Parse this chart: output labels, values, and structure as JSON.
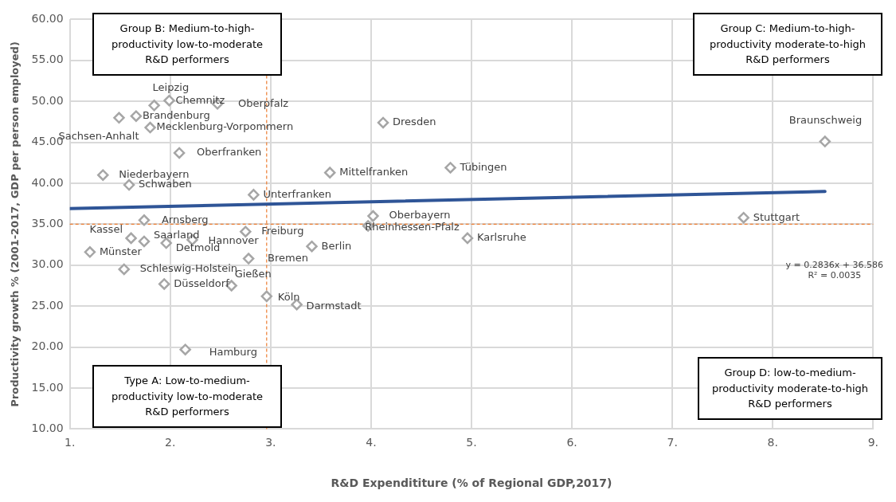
{
  "chart_data": {
    "type": "scatter",
    "xlabel": "R&D Expendititure (% of Regional GDP,2017)",
    "ylabel": "Productivity growth % (2001-2017, GDP per person employed)",
    "xlim": [
      1,
      9
    ],
    "xticks": [
      {
        "value": 1,
        "label": "1."
      },
      {
        "value": 2,
        "label": "2."
      },
      {
        "value": 3,
        "label": "3."
      },
      {
        "value": 4,
        "label": "4."
      },
      {
        "value": 5,
        "label": "5."
      },
      {
        "value": 6,
        "label": "6."
      },
      {
        "value": 7,
        "label": "7."
      },
      {
        "value": 8,
        "label": "8."
      },
      {
        "value": 9,
        "label": "9."
      }
    ],
    "ylim": [
      10,
      60
    ],
    "yticks": [
      {
        "value": 10,
        "label": "10.00"
      },
      {
        "value": 15,
        "label": "15.00"
      },
      {
        "value": 20,
        "label": "20.00"
      },
      {
        "value": 25,
        "label": "25.00"
      },
      {
        "value": 30,
        "label": "30.00"
      },
      {
        "value": 35,
        "label": "35.00"
      },
      {
        "value": 40,
        "label": "40.00"
      },
      {
        "value": 45,
        "label": "45.00"
      },
      {
        "value": 50,
        "label": "50.00"
      },
      {
        "value": 55,
        "label": "55.00"
      },
      {
        "value": 60,
        "label": "60.00"
      }
    ],
    "grid": true,
    "legend": false,
    "marker": "diamond",
    "series": [
      {
        "type": "scatter",
        "color": "#a6a6a6",
        "x": [
          1.84,
          1.99,
          2.47,
          1.66,
          1.8,
          1.49,
          2.09,
          1.33,
          1.59,
          2.83,
          4.12,
          3.59,
          4.79,
          8.52,
          7.71,
          4.96,
          4.02,
          3.97,
          3.41,
          1.74,
          1.61,
          1.2,
          1.74,
          2.22,
          1.96,
          2.75,
          2.78,
          1.54,
          1.94,
          2.61,
          2.96,
          3.26,
          2.15
        ],
        "values": [
          49.5,
          50.1,
          49.7,
          48.2,
          46.8,
          48.0,
          43.7,
          41.0,
          39.8,
          38.6,
          47.4,
          41.3,
          41.9,
          45.1,
          35.8,
          33.3,
          36.0,
          34.8,
          32.3,
          35.5,
          33.3,
          31.6,
          32.9,
          33.1,
          32.7,
          34.1,
          30.8,
          29.5,
          27.7,
          27.5,
          26.2,
          25.2,
          19.7
        ],
        "value_labels": [
          "Leipzig",
          "Chemnitz",
          "Oberpfalz",
          "Brandenburg",
          "Mecklenburg-Vorpommern",
          "Sachsen-Anhalt",
          "Oberfranken",
          "Niederbayern",
          "Schwaben",
          "Unterfranken",
          "Dresden",
          "Mittelfranken",
          "Tübingen",
          "Braunschweig",
          "Stuttgart",
          "Karlsruhe",
          "Oberbayern",
          "Rheinhessen-Pfalz",
          "Berlin",
          "Arnsberg",
          "Kassel",
          "Münster",
          "Saarland",
          "Hannover",
          "Detmold",
          "Freiburg",
          "Bremen",
          "Schleswig-Holstein",
          "Düsseldorf",
          "Gießen",
          "Köln",
          "Darmstadt",
          "Hamburg"
        ]
      },
      {
        "type": "line",
        "color": "#2f5597",
        "marker": "none",
        "x": [
          1,
          8.52
        ],
        "values": [
          36.9,
          39.0
        ]
      }
    ],
    "ref_lines": [
      {
        "axis": "x",
        "value": 2.96,
        "color": "#ed7d31",
        "line_style": "dashed"
      },
      {
        "axis": "y",
        "value": 35,
        "color": "#ed7d31",
        "line_style": "dashed"
      }
    ],
    "annotations": [
      "Group B: Medium-to-high-productivity low-to-moderate R&D performers",
      "Group C: Medium-to-high-productivity moderate-to-high R&D performers",
      "Type A: Low-to-medium-productivity low-to-moderate R&D performers",
      "Group D: low-to-medium-productivity moderate-to-high R&D performers",
      "y = 0.2836x + 36.586",
      "R² = 0.0035"
    ]
  }
}
